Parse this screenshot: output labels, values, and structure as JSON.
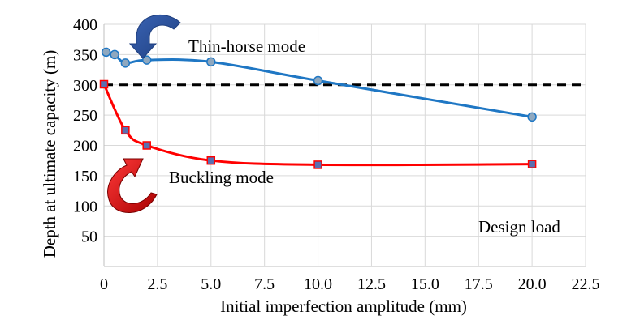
{
  "chart_data": {
    "type": "line",
    "xlabel": "Initial imperfection amplitude (mm)",
    "ylabel": "Depth at ultimate capacity (m)",
    "xlim": [
      0,
      22.5
    ],
    "ylim": [
      0,
      400
    ],
    "x_ticks": [
      0,
      2.5,
      5.0,
      7.5,
      10.0,
      12.5,
      15.0,
      17.5,
      20.0,
      22.5
    ],
    "x_tick_labels": [
      "0",
      "2.5",
      "5.0",
      "7.5",
      "10.0",
      "12.5",
      "15.0",
      "17.5",
      "20.0",
      "22.5"
    ],
    "y_ticks": [
      50,
      100,
      150,
      200,
      250,
      300,
      350,
      400
    ],
    "y_tick_labels": [
      "50",
      "100",
      "150",
      "200",
      "250",
      "300",
      "350",
      "400"
    ],
    "grid": true,
    "series": [
      {
        "name": "Thin-horse mode",
        "color": "#1f77c4",
        "marker": "circle",
        "marker_fill": "#8fa8bf",
        "x": [
          0.1,
          0.5,
          1.0,
          2.0,
          5.0,
          10.0,
          20.0
        ],
        "y": [
          354,
          350,
          336,
          341,
          338,
          307,
          247
        ]
      },
      {
        "name": "Buckling mode",
        "color": "#ff0000",
        "marker": "square",
        "marker_fill": "#5a6fb0",
        "x": [
          0.0,
          1.0,
          2.0,
          5.0,
          10.0,
          20.0
        ],
        "y": [
          301,
          225,
          200,
          175,
          168,
          169
        ]
      }
    ],
    "reference_line": {
      "y": 300,
      "style": "dashed",
      "color": "#000000"
    },
    "annotations": {
      "thin_horse": "Thin-horse mode",
      "buckling": "Buckling mode",
      "design_load": "Design load"
    },
    "arrow_colors": {
      "thin_horse": "#2f5597",
      "buckling": "#e00000"
    }
  }
}
